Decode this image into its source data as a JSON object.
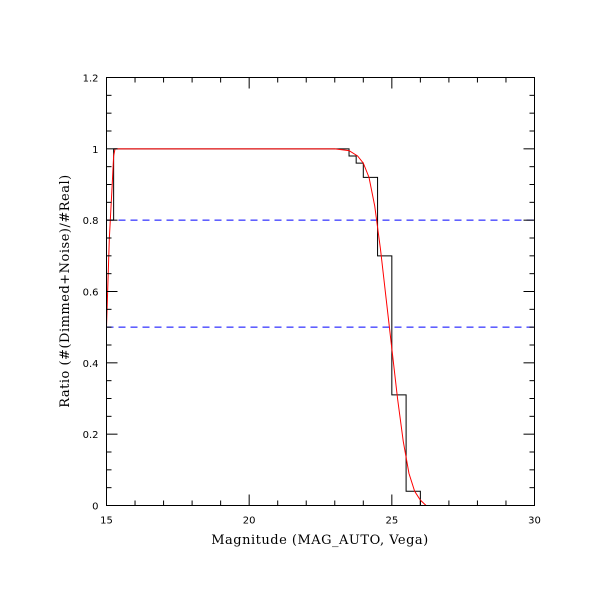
{
  "chart_data": {
    "type": "line",
    "title": "",
    "xlabel": "Magnitude (MAG_AUTO, Vega)",
    "ylabel": "Ratio (#(Dimmed+Noise)/#Real)",
    "xlim": [
      15,
      30
    ],
    "ylim": [
      0,
      1.2
    ],
    "x_ticks": [
      15,
      20,
      25,
      30
    ],
    "x_tick_labels": [
      "15",
      "20",
      "25",
      "30"
    ],
    "y_ticks": [
      0,
      0.2,
      0.4,
      0.6,
      0.8,
      1.0,
      1.2
    ],
    "y_tick_labels": [
      "0",
      "0.2",
      "0.4",
      "0.6",
      "0.8",
      "1",
      "1.2"
    ],
    "x_minor_step": 1,
    "y_minor_step": 0.05,
    "grid": false,
    "legend": "none",
    "colors": {
      "histogram": "#000000",
      "fit": "#ff0000",
      "reference": "#0000ff"
    },
    "series": [
      {
        "style": "step",
        "color": "#000000",
        "bin_edges": [
          15.0,
          15.25,
          23.5,
          23.75,
          24.0,
          24.5,
          25.0,
          25.5,
          26.0,
          30.0
        ],
        "values": [
          0.8,
          1.0,
          0.98,
          0.96,
          0.92,
          0.7,
          0.31,
          0.04,
          0.0
        ]
      },
      {
        "style": "line",
        "color": "#ff0000",
        "x": [
          15.0,
          15.1,
          15.2,
          15.25,
          15.3,
          16.0,
          18.0,
          20.0,
          22.0,
          23.0,
          23.5,
          23.8,
          24.0,
          24.2,
          24.4,
          24.6,
          24.8,
          25.0,
          25.2,
          25.4,
          25.6,
          25.8,
          26.0,
          26.2,
          27.0,
          30.0
        ],
        "y": [
          0.5,
          0.75,
          0.9,
          0.98,
          1.0,
          1.0,
          1.0,
          1.0,
          1.0,
          1.0,
          0.995,
          0.98,
          0.96,
          0.92,
          0.84,
          0.72,
          0.58,
          0.44,
          0.3,
          0.18,
          0.09,
          0.04,
          0.015,
          0.0,
          0.0,
          0.0
        ]
      }
    ],
    "reference_lines": [
      {
        "y": 0.8,
        "color": "#0000ff",
        "style": "dashed"
      },
      {
        "y": 0.5,
        "color": "#0000ff",
        "style": "dashed"
      }
    ]
  }
}
